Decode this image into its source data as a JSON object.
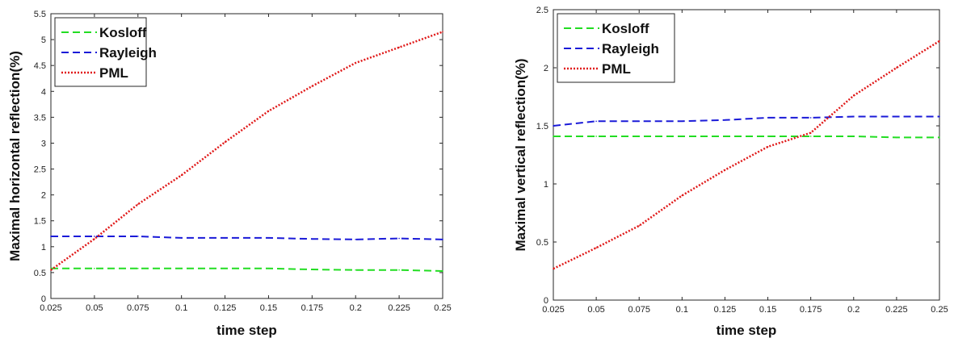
{
  "chart_data": [
    {
      "type": "line",
      "xlabel": "time step",
      "ylabel": "Maximal horizontal reflection(%)",
      "xlim": [
        0.025,
        0.25
      ],
      "ylim": [
        0,
        5.5
      ],
      "x_ticks": [
        "0.025",
        "0.05",
        "0.075",
        "0.1",
        "0.125",
        "0.15",
        "0.175",
        "0.2",
        "0.225",
        "0.25"
      ],
      "y_ticks": [
        "0",
        "0.5",
        "1",
        "1.5",
        "2",
        "2.5",
        "3",
        "3.5",
        "4",
        "4.5",
        "5",
        "5.5"
      ],
      "grid": false,
      "legend_position": "top-left",
      "x": [
        0.025,
        0.05,
        0.075,
        0.1,
        0.125,
        0.15,
        0.175,
        0.2,
        0.225,
        0.25
      ],
      "series": [
        {
          "name": "Kosloff",
          "color": "#22dd22",
          "dash": "dashed",
          "values": [
            0.58,
            0.58,
            0.58,
            0.58,
            0.58,
            0.58,
            0.56,
            0.55,
            0.55,
            0.53
          ]
        },
        {
          "name": "Rayleigh",
          "color": "#1a1ad8",
          "dash": "dashed",
          "values": [
            1.2,
            1.2,
            1.2,
            1.17,
            1.17,
            1.17,
            1.15,
            1.14,
            1.16,
            1.14
          ]
        },
        {
          "name": "PML",
          "color": "#e01a1a",
          "dash": "dotted",
          "values": [
            0.55,
            1.15,
            1.82,
            2.38,
            3.02,
            3.62,
            4.1,
            4.55,
            4.85,
            5.15
          ]
        }
      ]
    },
    {
      "type": "line",
      "xlabel": "time step",
      "ylabel": "Maximal vertical reflection(%)",
      "xlim": [
        0.025,
        0.25
      ],
      "ylim": [
        0,
        2.5
      ],
      "x_ticks": [
        "0.025",
        "0.05",
        "0.075",
        "0.1",
        "0.125",
        "0.15",
        "0.175",
        "0.2",
        "0.225",
        "0.25"
      ],
      "y_ticks": [
        "0",
        "0.5",
        "1",
        "1.5",
        "2",
        "2.5"
      ],
      "grid": false,
      "legend_position": "top-left",
      "x": [
        0.025,
        0.05,
        0.075,
        0.1,
        0.125,
        0.15,
        0.175,
        0.2,
        0.225,
        0.25
      ],
      "series": [
        {
          "name": "Kosloff",
          "color": "#22dd22",
          "dash": "dashed",
          "values": [
            1.41,
            1.41,
            1.41,
            1.41,
            1.41,
            1.41,
            1.41,
            1.41,
            1.4,
            1.4
          ]
        },
        {
          "name": "Rayleigh",
          "color": "#1a1ad8",
          "dash": "dashed",
          "values": [
            1.5,
            1.54,
            1.54,
            1.54,
            1.55,
            1.57,
            1.57,
            1.58,
            1.58,
            1.58
          ]
        },
        {
          "name": "PML",
          "color": "#e01a1a",
          "dash": "dotted",
          "values": [
            0.27,
            0.45,
            0.64,
            0.9,
            1.12,
            1.32,
            1.44,
            1.76,
            2.0,
            2.23
          ]
        }
      ]
    }
  ]
}
